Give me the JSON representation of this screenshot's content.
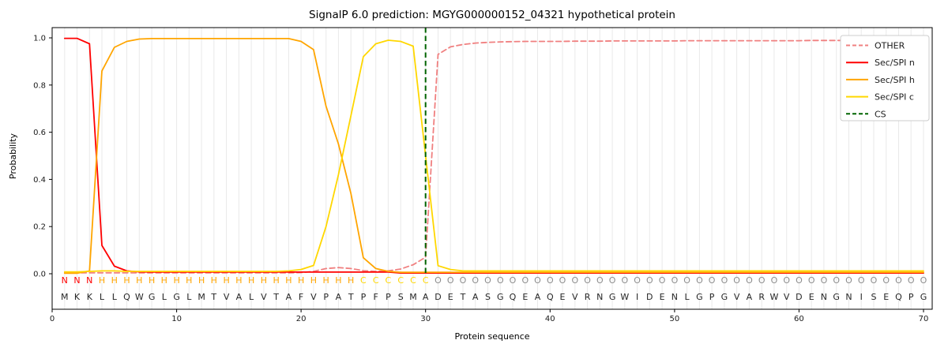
{
  "figure": {
    "title": "SignalP 6.0 prediction: MGYG000000152_04321 hypothetical protein",
    "xlabel": "Protein sequence",
    "ylabel": "Probability"
  },
  "chart_data": {
    "type": "line",
    "title": "SignalP 6.0 prediction: MGYG000000152_04321 hypothetical protein",
    "xlabel": "Protein sequence",
    "ylabel": "Probability",
    "x_positions_start": 1,
    "xlim": [
      0,
      70.8
    ],
    "ylim": [
      -0.15,
      1.045
    ],
    "x_ticks": [
      0,
      10,
      20,
      30,
      40,
      50,
      60,
      70
    ],
    "y_ticks": [
      "0.0",
      "0.2",
      "0.4",
      "0.6",
      "0.8",
      "1.0"
    ],
    "grid": {
      "vertical_line_per_residue": true,
      "color": "#e9e9e9"
    },
    "legend": {
      "position": "upper right",
      "entries": [
        "OTHER",
        "Sec/SPI n",
        "Sec/SPI h",
        "Sec/SPI c",
        "CS"
      ]
    },
    "cleavage_site_position": 30,
    "sequence": "MKKLLQWGLGLMTVALVTAFVPATPFPSMADETASGQEAQEVRNGWIDENLGPGVARWVDENGNISEQPG",
    "region_labels": "NNNHHHHHHHHHHHHHHHHHHHHHCCCCCCOOOOOOOOOOOOOOOOOOOOOOOOOOOOOOOOOOOOOOOO",
    "region_colors": {
      "N": "#ff0000",
      "H": "#ffa500",
      "C": "#ffd700",
      "O": "#8c8c8c"
    },
    "sequence_color": "#262626",
    "series": [
      {
        "name": "OTHER",
        "color": "#f08080",
        "dash": true,
        "values": [
          0.004,
          0.004,
          0.004,
          0.004,
          0.004,
          0.004,
          0.004,
          0.004,
          0.004,
          0.004,
          0.004,
          0.004,
          0.004,
          0.004,
          0.004,
          0.004,
          0.004,
          0.004,
          0.004,
          0.005,
          0.01,
          0.022,
          0.026,
          0.022,
          0.013,
          0.01,
          0.012,
          0.02,
          0.038,
          0.07,
          0.93,
          0.962,
          0.972,
          0.978,
          0.981,
          0.983,
          0.984,
          0.985,
          0.985,
          0.985,
          0.985,
          0.986,
          0.986,
          0.986,
          0.987,
          0.987,
          0.987,
          0.987,
          0.987,
          0.987,
          0.988,
          0.988,
          0.988,
          0.988,
          0.988,
          0.988,
          0.988,
          0.988,
          0.988,
          0.988,
          0.989,
          0.989,
          0.989,
          0.989,
          0.989,
          0.989,
          0.989,
          0.989,
          0.989,
          0.989
        ]
      },
      {
        "name": "Sec/SPI n",
        "color": "#ff0000",
        "dash": false,
        "values": [
          0.998,
          0.998,
          0.975,
          0.12,
          0.032,
          0.012,
          0.008,
          0.007,
          0.007,
          0.007,
          0.007,
          0.007,
          0.007,
          0.007,
          0.007,
          0.007,
          0.007,
          0.007,
          0.007,
          0.007,
          0.007,
          0.007,
          0.007,
          0.007,
          0.007,
          0.007,
          0.007,
          0.003,
          0.003,
          0.003,
          0.003,
          0.003,
          0.003,
          0.003,
          0.003,
          0.003,
          0.003,
          0.003,
          0.003,
          0.003,
          0.003,
          0.003,
          0.003,
          0.003,
          0.003,
          0.003,
          0.003,
          0.003,
          0.003,
          0.003,
          0.003,
          0.003,
          0.003,
          0.003,
          0.003,
          0.003,
          0.003,
          0.003,
          0.003,
          0.003,
          0.003,
          0.003,
          0.003,
          0.003,
          0.003,
          0.003,
          0.003,
          0.003,
          0.003,
          0.003
        ]
      },
      {
        "name": "Sec/SPI h",
        "color": "#ffa500",
        "dash": false,
        "values": [
          0.002,
          0.002,
          0.012,
          0.86,
          0.96,
          0.985,
          0.995,
          0.997,
          0.997,
          0.997,
          0.997,
          0.997,
          0.997,
          0.997,
          0.997,
          0.997,
          0.997,
          0.997,
          0.997,
          0.985,
          0.95,
          0.71,
          0.55,
          0.34,
          0.068,
          0.022,
          0.01,
          0.006,
          0.006,
          0.006,
          0.006,
          0.006,
          0.006,
          0.006,
          0.006,
          0.006,
          0.006,
          0.006,
          0.006,
          0.006,
          0.006,
          0.006,
          0.006,
          0.006,
          0.006,
          0.006,
          0.006,
          0.006,
          0.006,
          0.006,
          0.006,
          0.006,
          0.006,
          0.006,
          0.006,
          0.006,
          0.006,
          0.006,
          0.006,
          0.006,
          0.006,
          0.006,
          0.006,
          0.006,
          0.006,
          0.006,
          0.006,
          0.006,
          0.006,
          0.006
        ]
      },
      {
        "name": "Sec/SPI c",
        "color": "#ffd700",
        "dash": false,
        "values": [
          0.008,
          0.008,
          0.01,
          0.012,
          0.012,
          0.01,
          0.01,
          0.01,
          0.01,
          0.01,
          0.01,
          0.01,
          0.01,
          0.01,
          0.01,
          0.01,
          0.01,
          0.01,
          0.012,
          0.018,
          0.035,
          0.2,
          0.42,
          0.67,
          0.92,
          0.975,
          0.99,
          0.985,
          0.965,
          0.5,
          0.034,
          0.018,
          0.012,
          0.012,
          0.012,
          0.012,
          0.012,
          0.012,
          0.012,
          0.012,
          0.012,
          0.012,
          0.012,
          0.012,
          0.012,
          0.012,
          0.012,
          0.012,
          0.012,
          0.012,
          0.012,
          0.012,
          0.012,
          0.012,
          0.012,
          0.012,
          0.012,
          0.012,
          0.012,
          0.012,
          0.012,
          0.012,
          0.012,
          0.012,
          0.012,
          0.012,
          0.012,
          0.012,
          0.012,
          0.012
        ]
      },
      {
        "name": "CS",
        "color": "#006400",
        "dash": true,
        "type": "vline",
        "x": 30
      }
    ]
  }
}
